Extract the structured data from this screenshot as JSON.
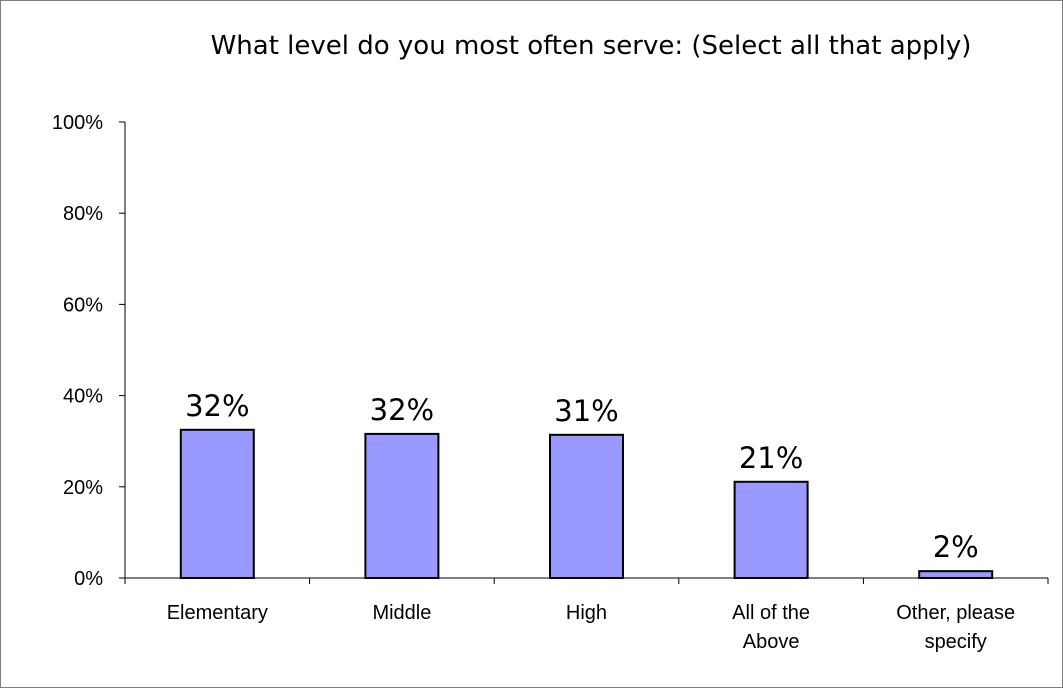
{
  "chart_data": {
    "type": "bar",
    "title": "What level do you most often serve: (Select all that apply)",
    "categories": [
      [
        "Elementary"
      ],
      [
        "Middle"
      ],
      [
        "High"
      ],
      [
        "All of the",
        "Above"
      ],
      [
        "Other, please",
        "specify"
      ]
    ],
    "values": [
      32,
      32,
      31,
      21,
      2
    ],
    "plotted_values": [
      32.5,
      31.6,
      31.4,
      21.1,
      1.5
    ],
    "data_labels": [
      "32%",
      "32%",
      "31%",
      "21%",
      "2%"
    ],
    "y_ticks": [
      "0%",
      "20%",
      "40%",
      "60%",
      "80%",
      "100%"
    ],
    "ylim": [
      0,
      100
    ],
    "xlabel": "",
    "ylabel": "",
    "grid": false,
    "legend": "none",
    "bar_color": "#9999ff",
    "bar_border_color": "#000000"
  }
}
